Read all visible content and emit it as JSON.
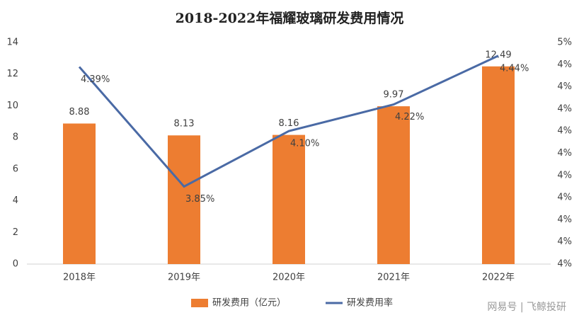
{
  "chart_data": {
    "type": "bar_line",
    "title": "2018-2022年福耀玻璃研发费用情况",
    "categories": [
      "2018年",
      "2019年",
      "2020年",
      "2021年",
      "2022年"
    ],
    "series": [
      {
        "name": "研发费用（亿元）",
        "type": "bar",
        "color": "#ed7d31",
        "values": [
          8.88,
          8.13,
          8.16,
          9.97,
          12.49
        ]
      },
      {
        "name": "研发费用率",
        "type": "line",
        "axis": "y2",
        "color": "#4a6aa5",
        "values": [
          4.39,
          3.85,
          4.1,
          4.22,
          4.44
        ],
        "value_labels": [
          "4.39%",
          "3.85%",
          "4.10%",
          "4.22%",
          "4.44%"
        ]
      }
    ],
    "ylim": [
      0,
      14
    ],
    "yticks": [
      0,
      2,
      4,
      6,
      8,
      10,
      12,
      14
    ],
    "y2lim": [
      3.5,
      4.5
    ],
    "y2ticks": [
      {
        "value": 3.5,
        "label": "4%"
      },
      {
        "value": 3.6,
        "label": "4%"
      },
      {
        "value": 3.7,
        "label": "4%"
      },
      {
        "value": 3.8,
        "label": "4%"
      },
      {
        "value": 3.9,
        "label": "4%"
      },
      {
        "value": 4.0,
        "label": "4%"
      },
      {
        "value": 4.1,
        "label": "4%"
      },
      {
        "value": 4.2,
        "label": "4%"
      },
      {
        "value": 4.3,
        "label": "4%"
      },
      {
        "value": 4.4,
        "label": "4%"
      },
      {
        "value": 4.5,
        "label": "5%"
      }
    ],
    "grid": false,
    "legend": "bottom",
    "watermark": "网易号 | 飞鲸投研"
  }
}
